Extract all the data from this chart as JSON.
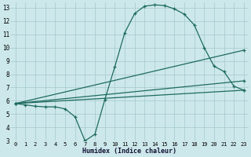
{
  "xlabel": "Humidex (Indice chaleur)",
  "bg_color": "#cde8eb",
  "grid_color": "#aacdd2",
  "line_color": "#1e6b5e",
  "xlim": [
    -0.5,
    23.5
  ],
  "ylim": [
    3,
    13.4
  ],
  "xticks": [
    0,
    1,
    2,
    3,
    4,
    5,
    6,
    7,
    8,
    9,
    10,
    11,
    12,
    13,
    14,
    15,
    16,
    17,
    18,
    19,
    20,
    21,
    22,
    23
  ],
  "yticks": [
    3,
    4,
    5,
    6,
    7,
    8,
    9,
    10,
    11,
    12,
    13
  ],
  "curve1_x": [
    0,
    1,
    2,
    3,
    4,
    5,
    6,
    7,
    8,
    9,
    10,
    11,
    12,
    13,
    14,
    15,
    16,
    17,
    18,
    19,
    20,
    21,
    22,
    23
  ],
  "curve1_y": [
    5.8,
    5.7,
    5.6,
    5.55,
    5.55,
    5.4,
    4.8,
    3.0,
    3.5,
    6.1,
    8.55,
    11.1,
    12.55,
    13.1,
    13.2,
    13.15,
    12.9,
    12.5,
    11.7,
    10.0,
    8.6,
    8.2,
    7.1,
    6.8
  ],
  "curve2_x": [
    0,
    23
  ],
  "curve2_y": [
    5.8,
    6.8
  ],
  "curve3_x": [
    0,
    23
  ],
  "curve3_y": [
    5.8,
    7.5
  ],
  "curve4_x": [
    0,
    23
  ],
  "curve4_y": [
    5.8,
    9.8
  ]
}
